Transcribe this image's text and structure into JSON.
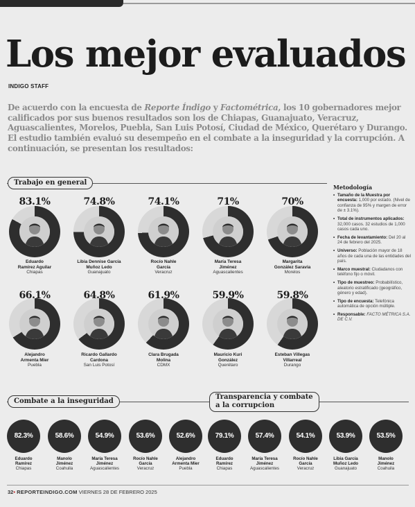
{
  "header": {
    "title": "Los mejor evaluados",
    "byline": "INDIGO STAFF"
  },
  "intro": {
    "p1": "De acuerdo con la encuesta de ",
    "source1": "Reporte Índigo",
    "and": " y ",
    "source2": "Factométrica",
    "p2": ", los 10 gobernadores mejor calificados por sus buenos resultados son los de Chiapas, Guanajuato, Veracruz, Aguascalientes, Morelos, Puebla, San Luis Potosí, Ciudad de México, Querétaro y Durango. El estudio también evaluó su desempeño en el combate a la inseguridad y la corrupción. A continuación, se presentan los resultados:"
  },
  "sections": {
    "trabajo": "Trabajo en general",
    "inseguridad": "Combate a la inseguridad",
    "transparencia_1": "Transparencia y combate",
    "transparencia_2": "a la corrupcion"
  },
  "colors": {
    "ring_dark": "#2e2e2e",
    "ring_light": "#d8d8d8",
    "accent_dot": "#b22222"
  },
  "trabajo_general": [
    {
      "pct": "83.1%",
      "value": 83.1,
      "name": "Eduardo\nRamírez Aguilar",
      "place": "Chiapas"
    },
    {
      "pct": "74.8%",
      "value": 74.8,
      "name": "Libia Dennise García\nMuñoz Ledo",
      "place": "Guanajuato"
    },
    {
      "pct": "74.1%",
      "value": 74.1,
      "name": "Rocío Nahle\nGarcía",
      "place": "Veracruz"
    },
    {
      "pct": "71%",
      "value": 71,
      "name": "María Teresa\nJiménez",
      "place": "Aguascalientes"
    },
    {
      "pct": "70%",
      "value": 70,
      "name": "Margarita\nGonzález Saravia",
      "place": "Morelos"
    },
    {
      "pct": "66.1%",
      "value": 66.1,
      "name": "Alejandro\nArmenta Mier",
      "place": "Puebla"
    },
    {
      "pct": "64.8%",
      "value": 64.8,
      "name": "Ricardo Gallardo\nCardona",
      "place": "San Luis Potosí"
    },
    {
      "pct": "61.9%",
      "value": 61.9,
      "name": "Clara Brugada\nMolina",
      "place": "CDMX"
    },
    {
      "pct": "59.9%",
      "value": 59.9,
      "name": "Mauricio Kuri\nGonzález",
      "place": "Querétaro"
    },
    {
      "pct": "59.8%",
      "value": 59.8,
      "name": "Esteban Villegas\nVillarreal",
      "place": "Durango"
    }
  ],
  "metodologia": {
    "heading": "Metodología",
    "items": [
      {
        "label": "Tamaño de la Muestra por encuesta:",
        "value": " 1,000 por estado. (Nivel de confianza de 95% y margen de error de ± 3.1%)."
      },
      {
        "label": "Total de instrumentos aplicados:",
        "value": " 32,000 casos. 32 estudios de 1,000 casos cada uno."
      },
      {
        "label": "Fecha de levantamiento:",
        "value": " Del 20 al 24 de febrero del 2025."
      },
      {
        "label": "Universo:",
        "value": " Población mayor de 18 años de cada una de las entidades del país."
      },
      {
        "label": "Marco muestral:",
        "value": " Ciudadanos con teléfono fijo o móvil."
      },
      {
        "label": "Tipo de muestreo:",
        "value": " Probabilístico, aleatorio estratificado (geográfico, género y edad)."
      },
      {
        "label": "Tipo de encuesta:",
        "value": " Telefónica automática de opción múltiple."
      },
      {
        "label": "Responsable:",
        "value": " FACTO MÉTRICA S.A. DE C.V."
      }
    ]
  },
  "inseguridad": [
    {
      "pct": "82.3%",
      "name": "Eduardo\nRamírez",
      "place": "Chiapas"
    },
    {
      "pct": "58.6%",
      "name": "Manolo\nJiménez",
      "place": "Coahuila"
    },
    {
      "pct": "54.9%",
      "name": "María Teresa\nJiménez",
      "place": "Aguascalientes"
    },
    {
      "pct": "53.6%",
      "name": "Rocío Nahle\nGarcía",
      "place": "Veracruz"
    },
    {
      "pct": "52.6%",
      "name": "Alejandro\nArmenta Mier",
      "place": "Puebla"
    }
  ],
  "transparencia": [
    {
      "pct": "79.1%",
      "name": "Eduardo\nRamírez",
      "place": "Chiapas"
    },
    {
      "pct": "57.4%",
      "name": "María Teresa\nJiménez",
      "place": "Aguascalientes"
    },
    {
      "pct": "54.1%",
      "name": "Rocío Nahle\nGarcía",
      "place": "Veracruz"
    },
    {
      "pct": "53.9%",
      "name": "Libia García\nMuñoz Ledo",
      "place": "Guanajuato"
    },
    {
      "pct": "53.5%",
      "name": "Manolo\nJiménez",
      "place": "Coahuila"
    }
  ],
  "footer": {
    "page": "32",
    "site": "REPORTEINDIGO.COM",
    "date": "VIERNES 28 DE FEBRERO 2025"
  }
}
